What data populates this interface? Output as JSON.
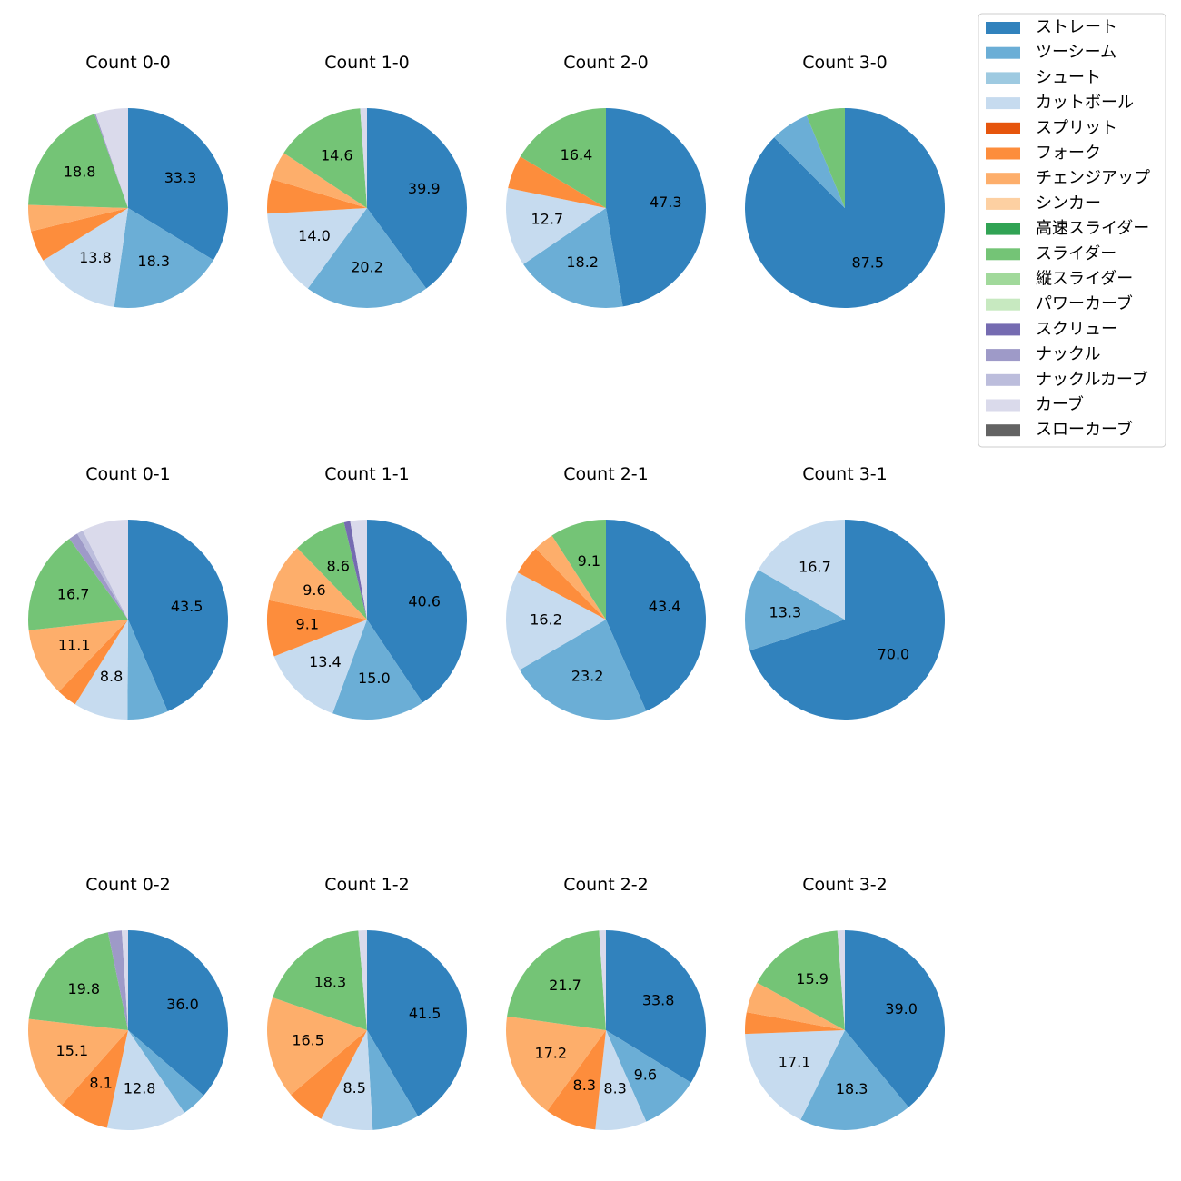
{
  "chart_data": {
    "type": "pie",
    "legend": {
      "placement": "top-right",
      "entries": [
        {
          "name": "ストレート",
          "color": "#3182bd"
        },
        {
          "name": "ツーシーム",
          "color": "#6baed6"
        },
        {
          "name": "シュート",
          "color": "#9ecae1"
        },
        {
          "name": "カットボール",
          "color": "#c6dbef"
        },
        {
          "name": "スプリット",
          "color": "#e6550d"
        },
        {
          "name": "フォーク",
          "color": "#fd8d3c"
        },
        {
          "name": "チェンジアップ",
          "color": "#fdae6b"
        },
        {
          "name": "シンカー",
          "color": "#fdd0a2"
        },
        {
          "name": "高速スライダー",
          "color": "#31a354"
        },
        {
          "name": "スライダー",
          "color": "#74c476"
        },
        {
          "name": "縦スライダー",
          "color": "#a1d99b"
        },
        {
          "name": "パワーカーブ",
          "color": "#c7e9c0"
        },
        {
          "name": "スクリュー",
          "color": "#756bb1"
        },
        {
          "name": "ナックル",
          "color": "#9e9ac8"
        },
        {
          "name": "ナックルカーブ",
          "color": "#bcbddc"
        },
        {
          "name": "カーブ",
          "color": "#dadaeb"
        },
        {
          "name": "スローカーブ",
          "color": "#636363"
        }
      ]
    },
    "pies": [
      {
        "title": "Count 0-0",
        "slices": [
          {
            "pitch": "ストレート",
            "value": 33.3,
            "label": "33.3"
          },
          {
            "pitch": "ツーシーム",
            "value": 18.3,
            "label": "18.3"
          },
          {
            "pitch": "カットボール",
            "value": 13.8,
            "label": "13.8"
          },
          {
            "pitch": "フォーク",
            "value": 5.0,
            "label": ""
          },
          {
            "pitch": "チェンジアップ",
            "value": 4.2,
            "label": ""
          },
          {
            "pitch": "スライダー",
            "value": 18.8,
            "label": "18.8"
          },
          {
            "pitch": "ナックル",
            "value": 0.2,
            "label": ""
          },
          {
            "pitch": "カーブ",
            "value": 5.2,
            "label": ""
          }
        ]
      },
      {
        "title": "Count 1-0",
        "slices": [
          {
            "pitch": "ストレート",
            "value": 39.9,
            "label": "39.9"
          },
          {
            "pitch": "ツーシーム",
            "value": 20.2,
            "label": "20.2"
          },
          {
            "pitch": "カットボール",
            "value": 14.0,
            "label": "14.0"
          },
          {
            "pitch": "フォーク",
            "value": 5.6,
            "label": ""
          },
          {
            "pitch": "チェンジアップ",
            "value": 4.6,
            "label": ""
          },
          {
            "pitch": "スライダー",
            "value": 14.6,
            "label": "14.6"
          },
          {
            "pitch": "カーブ",
            "value": 1.1,
            "label": ""
          }
        ]
      },
      {
        "title": "Count 2-0",
        "slices": [
          {
            "pitch": "ストレート",
            "value": 47.3,
            "label": "47.3"
          },
          {
            "pitch": "ツーシーム",
            "value": 18.2,
            "label": "18.2"
          },
          {
            "pitch": "カットボール",
            "value": 12.7,
            "label": "12.7"
          },
          {
            "pitch": "フォーク",
            "value": 5.4,
            "label": ""
          },
          {
            "pitch": "スライダー",
            "value": 16.4,
            "label": "16.4"
          }
        ]
      },
      {
        "title": "Count 3-0",
        "slices": [
          {
            "pitch": "ストレート",
            "value": 87.5,
            "label": "87.5"
          },
          {
            "pitch": "ツーシーム",
            "value": 6.25,
            "label": ""
          },
          {
            "pitch": "スライダー",
            "value": 6.25,
            "label": ""
          }
        ]
      },
      {
        "title": "Count 0-1",
        "slices": [
          {
            "pitch": "ストレート",
            "value": 43.5,
            "label": "43.5"
          },
          {
            "pitch": "ツーシーム",
            "value": 6.6,
            "label": ""
          },
          {
            "pitch": "カットボール",
            "value": 8.8,
            "label": "8.8"
          },
          {
            "pitch": "フォーク",
            "value": 3.3,
            "label": ""
          },
          {
            "pitch": "チェンジアップ",
            "value": 11.1,
            "label": "11.1"
          },
          {
            "pitch": "スライダー",
            "value": 16.7,
            "label": "16.7"
          },
          {
            "pitch": "ナックル",
            "value": 1.5,
            "label": ""
          },
          {
            "pitch": "ナックルカーブ",
            "value": 1.0,
            "label": ""
          },
          {
            "pitch": "カーブ",
            "value": 7.5,
            "label": ""
          }
        ]
      },
      {
        "title": "Count 1-1",
        "slices": [
          {
            "pitch": "ストレート",
            "value": 40.6,
            "label": "40.6"
          },
          {
            "pitch": "ツーシーム",
            "value": 15.0,
            "label": "15.0"
          },
          {
            "pitch": "カットボール",
            "value": 13.4,
            "label": "13.4"
          },
          {
            "pitch": "フォーク",
            "value": 9.1,
            "label": "9.1"
          },
          {
            "pitch": "チェンジアップ",
            "value": 9.6,
            "label": "9.6"
          },
          {
            "pitch": "スライダー",
            "value": 8.6,
            "label": "8.6"
          },
          {
            "pitch": "スクリュー",
            "value": 1.0,
            "label": ""
          },
          {
            "pitch": "カーブ",
            "value": 2.7,
            "label": ""
          }
        ]
      },
      {
        "title": "Count 2-1",
        "slices": [
          {
            "pitch": "ストレート",
            "value": 43.4,
            "label": "43.4"
          },
          {
            "pitch": "ツーシーム",
            "value": 23.2,
            "label": "23.2"
          },
          {
            "pitch": "カットボール",
            "value": 16.2,
            "label": "16.2"
          },
          {
            "pitch": "フォーク",
            "value": 4.8,
            "label": ""
          },
          {
            "pitch": "チェンジアップ",
            "value": 3.3,
            "label": ""
          },
          {
            "pitch": "スライダー",
            "value": 9.1,
            "label": "9.1"
          }
        ]
      },
      {
        "title": "Count 3-1",
        "slices": [
          {
            "pitch": "ストレート",
            "value": 70.0,
            "label": "70.0"
          },
          {
            "pitch": "ツーシーム",
            "value": 13.3,
            "label": "13.3"
          },
          {
            "pitch": "カットボール",
            "value": 16.7,
            "label": "16.7"
          }
        ]
      },
      {
        "title": "Count 0-2",
        "slices": [
          {
            "pitch": "ストレート",
            "value": 36.0,
            "label": "36.0"
          },
          {
            "pitch": "ツーシーム",
            "value": 4.1,
            "label": ""
          },
          {
            "pitch": "カットボール",
            "value": 12.8,
            "label": "12.8"
          },
          {
            "pitch": "フォーク",
            "value": 8.1,
            "label": "8.1"
          },
          {
            "pitch": "チェンジアップ",
            "value": 15.1,
            "label": "15.1"
          },
          {
            "pitch": "スライダー",
            "value": 19.8,
            "label": "19.8"
          },
          {
            "pitch": "ナックル",
            "value": 2.2,
            "label": ""
          },
          {
            "pitch": "カーブ",
            "value": 1.0,
            "label": ""
          }
        ]
      },
      {
        "title": "Count 1-2",
        "slices": [
          {
            "pitch": "ストレート",
            "value": 41.5,
            "label": "41.5"
          },
          {
            "pitch": "ツーシーム",
            "value": 7.6,
            "label": ""
          },
          {
            "pitch": "カットボール",
            "value": 8.5,
            "label": "8.5"
          },
          {
            "pitch": "フォーク",
            "value": 6.2,
            "label": ""
          },
          {
            "pitch": "チェンジアップ",
            "value": 16.5,
            "label": "16.5"
          },
          {
            "pitch": "スライダー",
            "value": 18.3,
            "label": "18.3"
          },
          {
            "pitch": "カーブ",
            "value": 1.4,
            "label": ""
          }
        ]
      },
      {
        "title": "Count 2-2",
        "slices": [
          {
            "pitch": "ストレート",
            "value": 33.8,
            "label": "33.8"
          },
          {
            "pitch": "ツーシーム",
            "value": 9.6,
            "label": "9.6"
          },
          {
            "pitch": "カットボール",
            "value": 8.3,
            "label": "8.3"
          },
          {
            "pitch": "フォーク",
            "value": 8.3,
            "label": "8.3"
          },
          {
            "pitch": "チェンジアップ",
            "value": 17.2,
            "label": "17.2"
          },
          {
            "pitch": "スライダー",
            "value": 21.7,
            "label": "21.7"
          },
          {
            "pitch": "カーブ",
            "value": 1.1,
            "label": ""
          }
        ]
      },
      {
        "title": "Count 3-2",
        "slices": [
          {
            "pitch": "ストレート",
            "value": 39.0,
            "label": "39.0"
          },
          {
            "pitch": "ツーシーム",
            "value": 18.3,
            "label": "18.3"
          },
          {
            "pitch": "カットボール",
            "value": 17.1,
            "label": "17.1"
          },
          {
            "pitch": "フォーク",
            "value": 3.5,
            "label": ""
          },
          {
            "pitch": "チェンジアップ",
            "value": 5.0,
            "label": ""
          },
          {
            "pitch": "スライダー",
            "value": 15.9,
            "label": "15.9"
          },
          {
            "pitch": "カーブ",
            "value": 1.2,
            "label": ""
          }
        ]
      }
    ]
  }
}
